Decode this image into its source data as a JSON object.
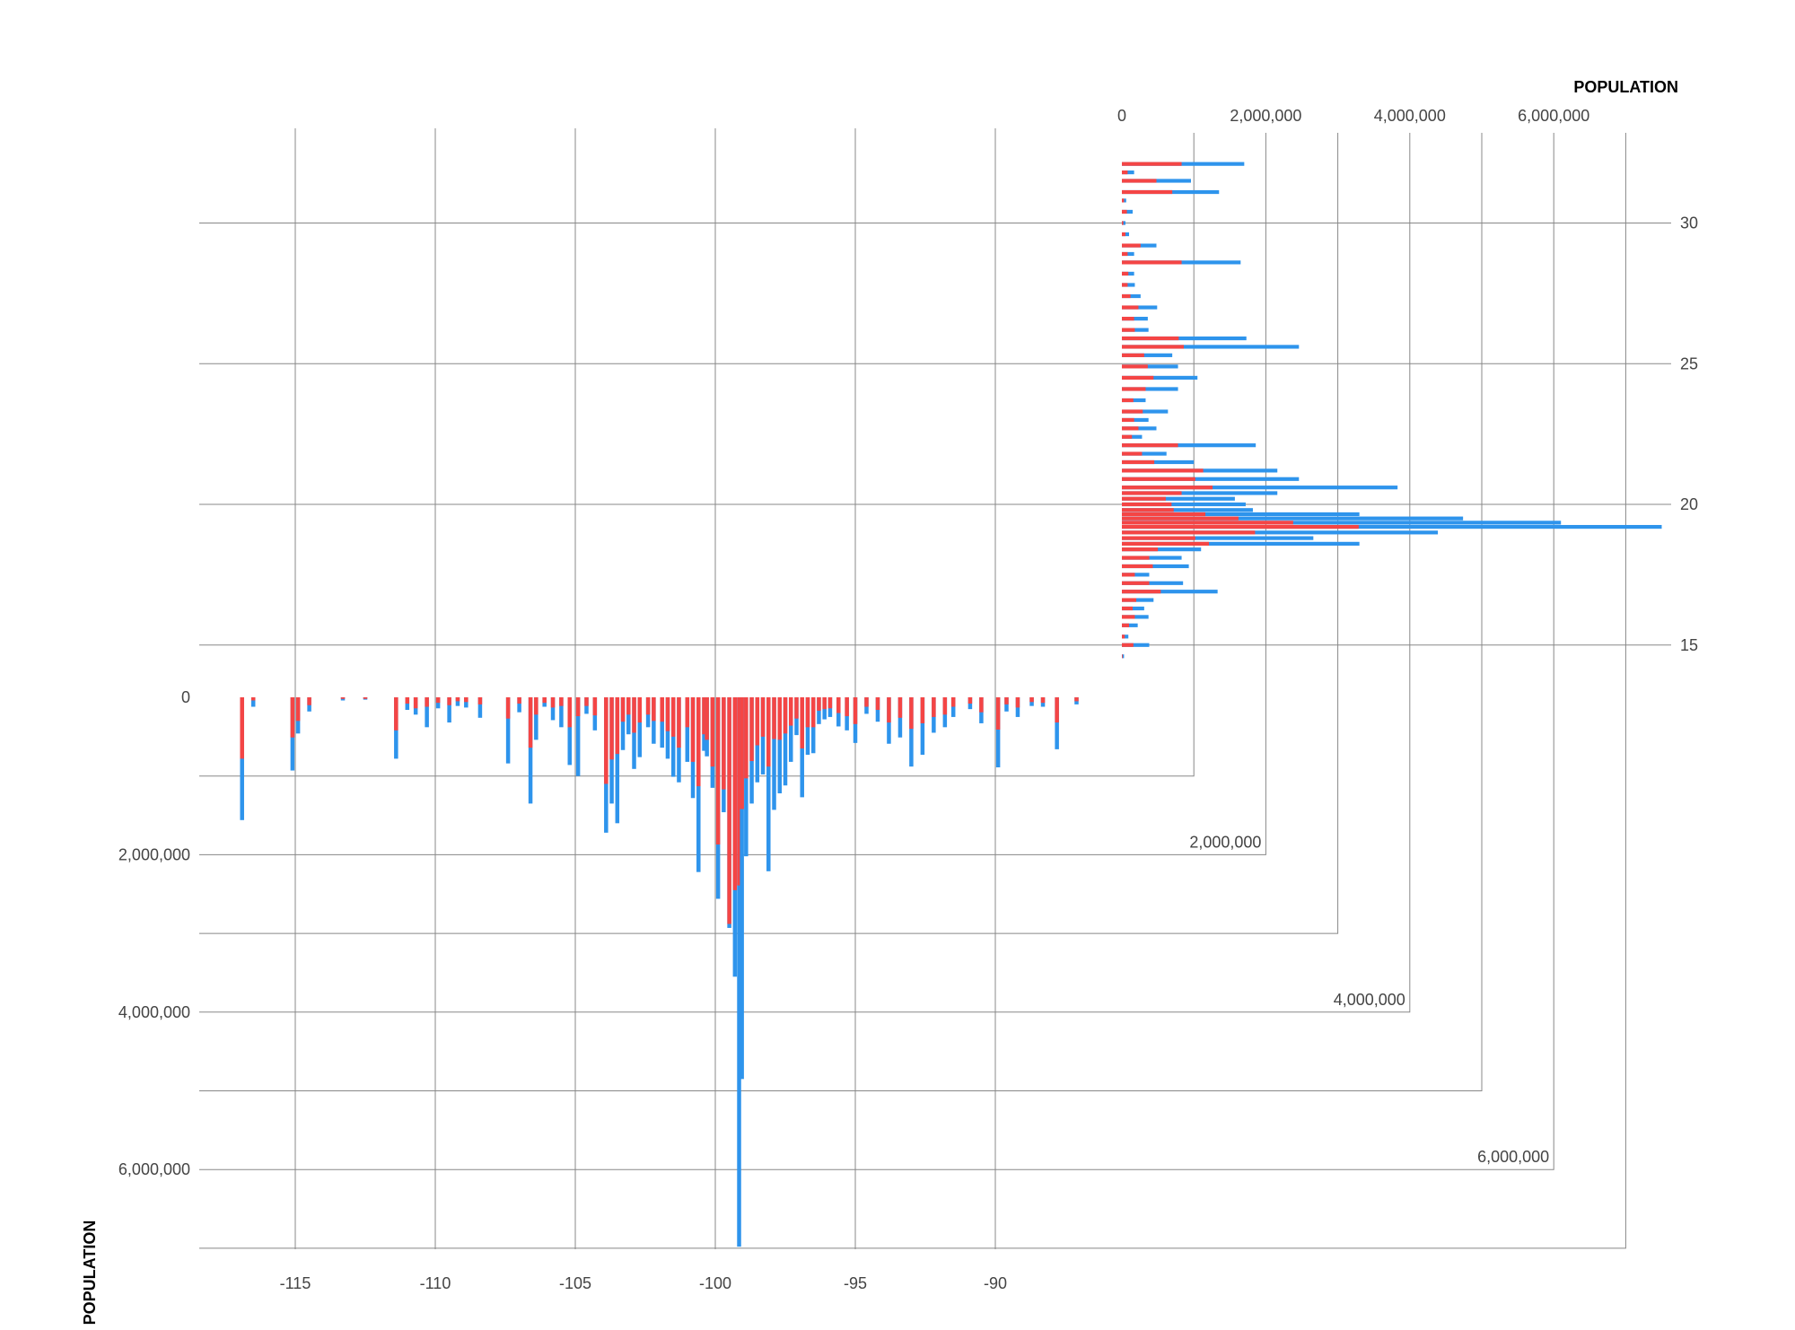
{
  "chart_data": {
    "type": "bar",
    "colors": {
      "red": "#f44545",
      "blue": "#2e94ec",
      "grid": "#888888"
    },
    "bottom_chart": {
      "orientation": "vertical-down",
      "xlabel": "",
      "ylabel": "POPULATION",
      "xticks": [
        -115,
        -110,
        -105,
        -100,
        -95,
        -90
      ],
      "xtick_labels": [
        "-115",
        "-110",
        "-105",
        "-100",
        "-95",
        "-90"
      ],
      "xlim": [
        -118.5,
        -87
      ],
      "yticks": [
        0,
        2000000,
        4000000,
        6000000
      ],
      "ytick_labels": [
        "0",
        "2,000,000",
        "4,000,000",
        "6,000,000"
      ],
      "ylim": [
        0,
        7000000
      ],
      "x": [
        -116.9,
        -116.5,
        -115.1,
        -114.9,
        -114.5,
        -113.3,
        -112.5,
        -111.4,
        -111.0,
        -110.7,
        -110.3,
        -109.9,
        -109.5,
        -109.2,
        -108.9,
        -108.4,
        -107.4,
        -107.0,
        -106.6,
        -106.4,
        -106.1,
        -105.8,
        -105.5,
        -105.2,
        -104.9,
        -104.6,
        -104.3,
        -103.9,
        -103.7,
        -103.5,
        -103.3,
        -103.1,
        -102.9,
        -102.7,
        -102.4,
        -102.2,
        -101.9,
        -101.7,
        -101.5,
        -101.3,
        -101.0,
        -100.8,
        -100.6,
        -100.4,
        -100.3,
        -100.1,
        -99.9,
        -99.7,
        -99.5,
        -99.3,
        -99.15,
        -99.05,
        -98.9,
        -98.7,
        -98.5,
        -98.3,
        -98.1,
        -97.9,
        -97.7,
        -97.5,
        -97.3,
        -97.1,
        -96.9,
        -96.7,
        -96.5,
        -96.3,
        -96.1,
        -95.9,
        -95.6,
        -95.3,
        -95.0,
        -94.6,
        -94.2,
        -93.8,
        -93.4,
        -93.0,
        -92.6,
        -92.2,
        -91.8,
        -91.5,
        -90.9,
        -90.5,
        -89.9,
        -89.6,
        -89.2,
        -88.7,
        -88.3,
        -87.8,
        -87.1
      ],
      "values": [
        1560000,
        120000,
        930000,
        460000,
        180000,
        40000,
        30000,
        780000,
        160000,
        220000,
        380000,
        140000,
        320000,
        110000,
        130000,
        260000,
        840000,
        190000,
        1350000,
        540000,
        120000,
        290000,
        380000,
        860000,
        1000000,
        210000,
        420000,
        1720000,
        1350000,
        1600000,
        670000,
        470000,
        910000,
        760000,
        380000,
        590000,
        640000,
        780000,
        1010000,
        1080000,
        820000,
        1280000,
        2220000,
        680000,
        750000,
        1150000,
        2560000,
        1460000,
        2930000,
        3550000,
        6980000,
        4850000,
        2020000,
        1350000,
        1080000,
        980000,
        2210000,
        1430000,
        1220000,
        1120000,
        820000,
        480000,
        1270000,
        730000,
        710000,
        340000,
        280000,
        250000,
        370000,
        420000,
        580000,
        210000,
        310000,
        590000,
        510000,
        880000,
        730000,
        450000,
        380000,
        250000,
        150000,
        330000,
        890000,
        180000,
        250000,
        110000,
        120000,
        660000,
        90000
      ],
      "red_values": [
        780000,
        40000,
        510000,
        300000,
        100000,
        20000,
        20000,
        420000,
        80000,
        140000,
        120000,
        70000,
        100000,
        50000,
        60000,
        90000,
        270000,
        80000,
        640000,
        220000,
        70000,
        130000,
        110000,
        380000,
        240000,
        110000,
        230000,
        1100000,
        790000,
        720000,
        310000,
        220000,
        450000,
        320000,
        220000,
        300000,
        310000,
        430000,
        500000,
        640000,
        380000,
        820000,
        1130000,
        470000,
        540000,
        880000,
        1870000,
        1170000,
        2880000,
        2450000,
        2390000,
        1420000,
        1030000,
        810000,
        610000,
        500000,
        880000,
        530000,
        540000,
        460000,
        360000,
        270000,
        650000,
        380000,
        380000,
        170000,
        150000,
        140000,
        200000,
        240000,
        340000,
        120000,
        160000,
        320000,
        260000,
        400000,
        330000,
        250000,
        220000,
        120000,
        80000,
        190000,
        410000,
        90000,
        130000,
        60000,
        70000,
        320000,
        50000
      ]
    },
    "right_chart": {
      "orientation": "horizontal-right",
      "xlabel": "POPULATION",
      "xticks": [
        0,
        2000000,
        4000000,
        6000000
      ],
      "xtick_labels": [
        "0",
        "2,000,000",
        "4,000,000",
        "6,000,000"
      ],
      "xlim": [
        0,
        7500000
      ],
      "yticks": [
        15,
        20,
        25,
        30
      ],
      "ytick_labels": [
        "15",
        "20",
        "25",
        "30"
      ],
      "ylim": [
        14.5,
        32.3
      ],
      "y": [
        14.6,
        15.0,
        15.3,
        15.7,
        16.0,
        16.3,
        16.6,
        16.9,
        17.2,
        17.5,
        17.8,
        18.1,
        18.4,
        18.6,
        18.8,
        19.0,
        19.2,
        19.35,
        19.5,
        19.65,
        19.8,
        20.0,
        20.2,
        20.4,
        20.6,
        20.9,
        21.2,
        21.5,
        21.8,
        22.1,
        22.4,
        22.7,
        23.0,
        23.3,
        23.7,
        24.1,
        24.5,
        24.9,
        25.3,
        25.6,
        25.9,
        26.2,
        26.6,
        27.0,
        27.4,
        27.8,
        28.2,
        28.6,
        28.9,
        29.2,
        29.6,
        30.0,
        30.4,
        30.8,
        31.1,
        31.5,
        31.8,
        32.1
      ],
      "values": [
        30000,
        380000,
        90000,
        220000,
        370000,
        310000,
        440000,
        1330000,
        850000,
        380000,
        930000,
        830000,
        1100000,
        3300000,
        2660000,
        4390000,
        7500000,
        6100000,
        4740000,
        3300000,
        1820000,
        1720000,
        1570000,
        2160000,
        3830000,
        2460000,
        2160000,
        1000000,
        620000,
        1860000,
        280000,
        480000,
        370000,
        640000,
        330000,
        780000,
        1050000,
        780000,
        700000,
        2460000,
        1730000,
        370000,
        360000,
        490000,
        260000,
        180000,
        170000,
        1650000,
        170000,
        480000,
        100000,
        50000,
        150000,
        60000,
        1350000,
        960000,
        170000,
        1700000
      ],
      "red_values": [
        10000,
        160000,
        40000,
        100000,
        180000,
        150000,
        200000,
        540000,
        380000,
        180000,
        430000,
        380000,
        500000,
        1210000,
        1020000,
        1850000,
        3290000,
        2380000,
        1620000,
        1160000,
        720000,
        690000,
        610000,
        830000,
        1260000,
        1020000,
        1130000,
        450000,
        280000,
        780000,
        140000,
        230000,
        170000,
        290000,
        160000,
        330000,
        440000,
        360000,
        310000,
        860000,
        790000,
        180000,
        170000,
        230000,
        120000,
        80000,
        90000,
        830000,
        80000,
        260000,
        50000,
        20000,
        70000,
        30000,
        700000,
        480000,
        80000,
        830000
      ]
    }
  }
}
